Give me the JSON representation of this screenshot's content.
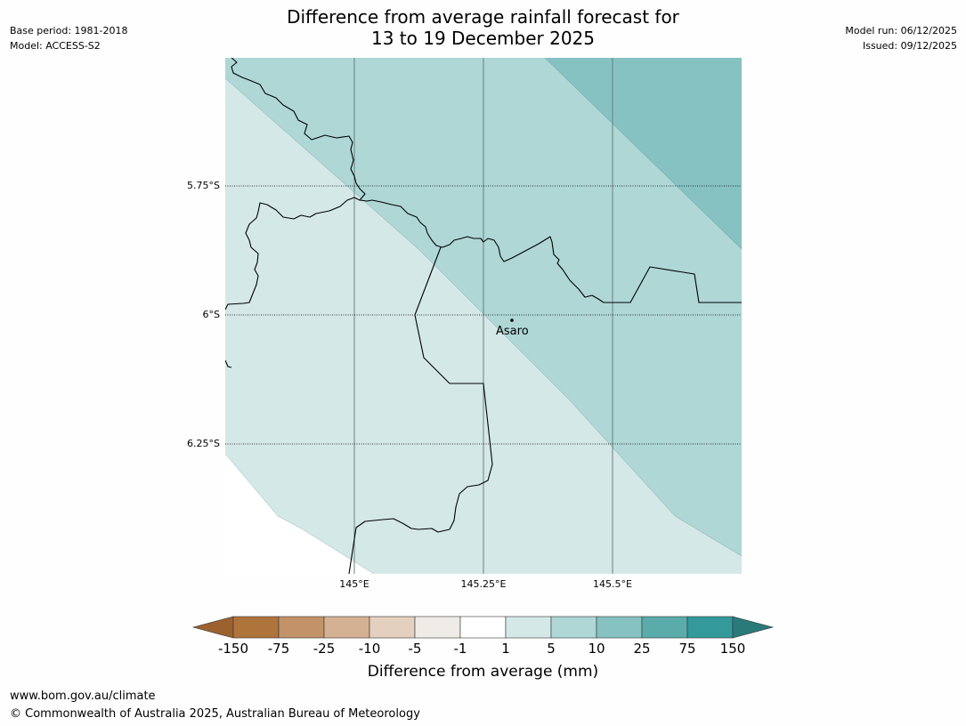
{
  "meta": {
    "base_period": "Base period: 1981-2018",
    "model": "Model: ACCESS-S2",
    "model_run": "Model run: 06/12/2025",
    "issued": "Issued: 09/12/2025"
  },
  "title": {
    "line1": "Difference from average rainfall forecast for",
    "line2": "13 to 19 December 2025"
  },
  "map": {
    "place": "Asaro",
    "lat_labels": [
      "5.75°S",
      "6°S",
      "6.25°S"
    ],
    "lon_labels": [
      "145°E",
      "145.25°E",
      "145.5°E"
    ],
    "zone_colors": {
      "1_to_5": "#d4e8e7",
      "5_to_10": "#aed7d6",
      "10_to_25": "#86c2c1"
    }
  },
  "colorbar": {
    "title": "Difference from average (mm)",
    "ticks": [
      "-150",
      "-75",
      "-25",
      "-10",
      "-5",
      "-1",
      "1",
      "5",
      "10",
      "25",
      "75",
      "150"
    ],
    "colors": [
      "#9b6230",
      "#af733c",
      "#c29268",
      "#d3b192",
      "#e4d0be",
      "#efebe7",
      "#ffffff",
      "#d4e8e7",
      "#aed7d6",
      "#86c2c1",
      "#5aacab",
      "#33999a",
      "#2a7a7a"
    ]
  },
  "footer": {
    "url": "www.bom.gov.au/climate",
    "copyright": "© Commonwealth of Australia 2025, Australian Bureau of Meteorology"
  }
}
